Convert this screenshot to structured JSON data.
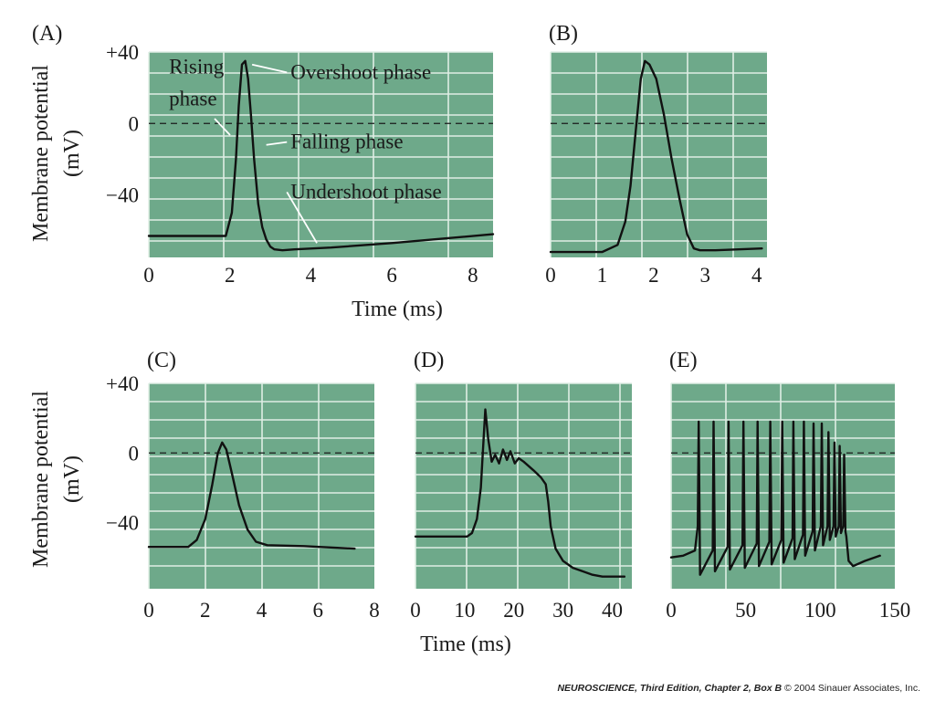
{
  "chart_data": [
    {
      "id": "A",
      "type": "line",
      "panel_label": "(A)",
      "xlabel": "Time (ms)",
      "ylabel_line1": "Membrane potential",
      "ylabel_line2": "(mV)",
      "xlim": [
        0,
        8.5
      ],
      "ylim": [
        -75,
        40
      ],
      "xticks": [
        0,
        2,
        4,
        6,
        8
      ],
      "xtick_labels": [
        "0",
        "2",
        "4",
        "6",
        "8"
      ],
      "yticks": [
        40,
        0,
        -40
      ],
      "ytick_labels": [
        "+40",
        "0",
        "−40"
      ],
      "grid": true,
      "zero_line": true,
      "annotations": [
        {
          "text": "Rising",
          "x": 0.5,
          "y": 28
        },
        {
          "text": "phase",
          "x": 0.5,
          "y": 10
        },
        {
          "text": "Overshoot phase",
          "x": 3.5,
          "y": 25,
          "point": [
            2.55,
            33
          ]
        },
        {
          "text": "Falling phase",
          "x": 3.5,
          "y": -14,
          "point": [
            2.9,
            -12
          ]
        },
        {
          "text": "Undershoot phase",
          "x": 3.5,
          "y": -42,
          "point": [
            4.15,
            -67
          ]
        }
      ],
      "series": [
        {
          "x": [
            0,
            1.9,
            2.05,
            2.15,
            2.22,
            2.3,
            2.38,
            2.45,
            2.52,
            2.6,
            2.7,
            2.8,
            2.9,
            3.0,
            3.1,
            3.3,
            3.6,
            4.5,
            6.0,
            8.5
          ],
          "y": [
            -63,
            -63,
            -50,
            -20,
            10,
            33,
            35,
            25,
            5,
            -20,
            -45,
            -58,
            -65,
            -69,
            -70.5,
            -71,
            -70.5,
            -69.5,
            -67,
            -62
          ]
        }
      ]
    },
    {
      "id": "B",
      "type": "line",
      "panel_label": "(B)",
      "xlabel": "",
      "xlim": [
        0,
        4.2
      ],
      "ylim": [
        -75,
        40
      ],
      "xticks": [
        0,
        1,
        2,
        3,
        4
      ],
      "xtick_labels": [
        "0",
        "1",
        "2",
        "3",
        "4"
      ],
      "yticks": [],
      "ytick_labels": [],
      "grid": true,
      "zero_line": true,
      "series": [
        {
          "x": [
            0,
            1.0,
            1.3,
            1.45,
            1.55,
            1.65,
            1.75,
            1.83,
            1.92,
            2.05,
            2.2,
            2.35,
            2.5,
            2.65,
            2.78,
            2.9,
            3.2,
            4.1
          ],
          "y": [
            -72,
            -72,
            -68,
            -55,
            -35,
            -5,
            25,
            35,
            33,
            25,
            5,
            -20,
            -42,
            -62,
            -70,
            -71,
            -71,
            -70
          ]
        }
      ]
    },
    {
      "id": "C",
      "type": "line",
      "panel_label": "(C)",
      "xlabel": "",
      "ylabel_line1": "Membrane potential",
      "ylabel_line2": "(mV)",
      "xlim": [
        0,
        8
      ],
      "ylim": [
        -78,
        40
      ],
      "xticks": [
        0,
        2,
        4,
        6,
        8
      ],
      "xtick_labels": [
        "0",
        "2",
        "4",
        "6",
        "8"
      ],
      "yticks": [
        40,
        0,
        -40
      ],
      "ytick_labels": [
        "+40",
        "0",
        "−40"
      ],
      "grid": true,
      "zero_line": true,
      "series": [
        {
          "x": [
            0,
            1.4,
            1.7,
            2.0,
            2.25,
            2.45,
            2.6,
            2.75,
            2.95,
            3.2,
            3.5,
            3.8,
            4.2,
            5.5,
            7.3
          ],
          "y": [
            -54,
            -54,
            -50,
            -38,
            -18,
            0,
            6,
            2,
            -12,
            -30,
            -44,
            -51,
            -53,
            -53.5,
            -55
          ]
        }
      ]
    },
    {
      "id": "D",
      "type": "line",
      "panel_label": "(D)",
      "xlabel": "Time (ms)",
      "xlim": [
        0,
        44
      ],
      "ylim": [
        -78,
        40
      ],
      "xticks": [
        0,
        10,
        20,
        30,
        40
      ],
      "xtick_labels": [
        "0",
        "10",
        "20",
        "30",
        "40"
      ],
      "yticks": [],
      "ytick_labels": [],
      "grid": true,
      "zero_line": true,
      "series": [
        {
          "x": [
            0,
            10.5,
            11.5,
            12.5,
            13.3,
            13.8,
            14.2,
            14.8,
            15.5,
            16.2,
            17.0,
            17.8,
            18.6,
            19.3,
            20.2,
            21.0,
            22.0,
            24.0,
            25.5,
            26.5,
            27.0,
            27.5,
            28.5,
            30.0,
            32.0,
            34.0,
            36.0,
            38.0,
            42.5
          ],
          "y": [
            -48,
            -48,
            -46,
            -38,
            -20,
            5,
            25,
            8,
            -5,
            -1,
            -6,
            2,
            -4,
            1,
            -6,
            -3,
            -5,
            -10,
            -14,
            -18,
            -28,
            -42,
            -55,
            -62,
            -66,
            -68,
            -70,
            -71,
            -71
          ]
        }
      ]
    },
    {
      "id": "E",
      "type": "line",
      "panel_label": "(E)",
      "xlabel": "",
      "xlim": [
        0,
        150
      ],
      "ylim": [
        -78,
        40
      ],
      "xticks": [
        0,
        50,
        100,
        150
      ],
      "xtick_labels": [
        "0",
        "50",
        "100",
        "150"
      ],
      "yticks": [],
      "ytick_labels": [],
      "grid": true,
      "zero_line": true,
      "spike_times": [
        18.5,
        28.5,
        38.5,
        48.5,
        58.0,
        66.5,
        74.5,
        82.0,
        89.0,
        95.5,
        101.0,
        105.5,
        109.5,
        113.0,
        116.0
      ],
      "spike_peak_mV": [
        18,
        18,
        18,
        18,
        18,
        18,
        18,
        18,
        18,
        17,
        17,
        12,
        6,
        4,
        -1
      ],
      "spike_trough_mV": [
        -70,
        -68,
        -67,
        -66,
        -65,
        -64,
        -63,
        -61,
        -59,
        -56,
        -53,
        -50,
        -48,
        -46,
        -45
      ],
      "baseline_start_mV": -60,
      "tail": {
        "x": [
          117.5,
          119,
          122,
          130,
          140
        ],
        "y": [
          -48,
          -62,
          -65,
          -62,
          -59
        ]
      }
    }
  ],
  "credit": {
    "title": "NEUROSCIENCE",
    "edition": ", Third Edition, Chapter 2, Box B",
    "copyright": "© 2004 Sinauer Associates, Inc."
  }
}
